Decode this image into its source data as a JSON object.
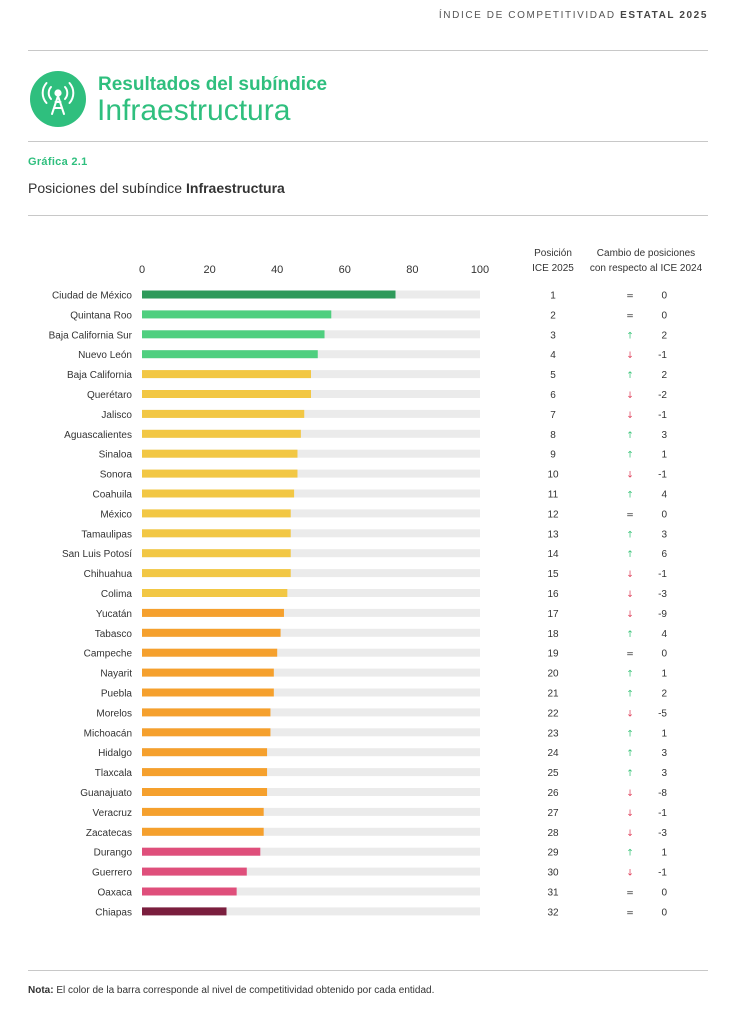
{
  "header": {
    "top_label_prefix": "ÍNDICE DE COMPETITIVIDAD",
    "top_label_bold": "ESTATAL 2025",
    "subtitle": "Resultados del subíndice",
    "title": "Infraestructura",
    "logo_icon": "antenna-tower-icon"
  },
  "figure": {
    "label": "Gráfica 2.1",
    "caption_prefix": "Posiciones del subíndice",
    "caption_bold": "Infraestructura"
  },
  "columns": {
    "position_line1": "Posición",
    "position_line2": "ICE 2025",
    "change_line1": "Cambio de posiciones",
    "change_line2": "con respecto al ICE 2024"
  },
  "note": {
    "label": "Nota:",
    "text": "El color de la barra corresponde al nivel de competitividad obtenido por cada entidad."
  },
  "colors": {
    "accent": "#2fbf7e",
    "track": "#ebebeb",
    "up": "#3cc47a",
    "down": "#e0455f",
    "level_colors": {
      "muy_alta": "#2e9a5a",
      "alta": "#4fcf7f",
      "media_alta": "#f2c744",
      "media_baja": "#f5a02d",
      "baja": "#df4f7b",
      "muy_baja": "#7a1e3e"
    }
  },
  "chart_data": {
    "type": "bar",
    "orientation": "horizontal",
    "title": "Posiciones del subíndice Infraestructura",
    "xlim": [
      0,
      100
    ],
    "xticks": [
      0,
      20,
      40,
      60,
      80,
      100
    ],
    "categories": [
      "Ciudad de México",
      "Quintana Roo",
      "Baja California Sur",
      "Nuevo León",
      "Baja California",
      "Querétaro",
      "Jalisco",
      "Aguascalientes",
      "Sinaloa",
      "Sonora",
      "Coahuila",
      "México",
      "Tamaulipas",
      "San Luis Potosí",
      "Chihuahua",
      "Colima",
      "Yucatán",
      "Tabasco",
      "Campeche",
      "Nayarit",
      "Puebla",
      "Morelos",
      "Michoacán",
      "Hidalgo",
      "Tlaxcala",
      "Guanajuato",
      "Veracruz",
      "Zacatecas",
      "Durango",
      "Guerrero",
      "Oaxaca",
      "Chiapas"
    ],
    "values": [
      75,
      56,
      54,
      52,
      50,
      50,
      48,
      47,
      46,
      46,
      45,
      44,
      44,
      44,
      44,
      43,
      42,
      41,
      40,
      39,
      39,
      38,
      38,
      37,
      37,
      37,
      36,
      36,
      35,
      31,
      28,
      25
    ],
    "levels": [
      "muy_alta",
      "alta",
      "alta",
      "alta",
      "media_alta",
      "media_alta",
      "media_alta",
      "media_alta",
      "media_alta",
      "media_alta",
      "media_alta",
      "media_alta",
      "media_alta",
      "media_alta",
      "media_alta",
      "media_alta",
      "media_baja",
      "media_baja",
      "media_baja",
      "media_baja",
      "media_baja",
      "media_baja",
      "media_baja",
      "media_baja",
      "media_baja",
      "media_baja",
      "media_baja",
      "media_baja",
      "baja",
      "baja",
      "baja",
      "muy_baja"
    ],
    "positions": [
      "1",
      "2",
      "3",
      "4",
      "5",
      "6",
      "7",
      "8",
      "9",
      "10",
      "11",
      "12",
      "13",
      "14",
      "15",
      "16",
      "17",
      "18",
      "19",
      "20",
      "21",
      "22",
      "23",
      "24",
      "25",
      "26",
      "27",
      "28",
      "29",
      "30",
      "31",
      "32"
    ],
    "change_direction": [
      "same",
      "same",
      "up",
      "down",
      "up",
      "down",
      "down",
      "up",
      "up",
      "down",
      "up",
      "same",
      "up",
      "up",
      "down",
      "down",
      "down",
      "up",
      "same",
      "up",
      "up",
      "down",
      "up",
      "up",
      "up",
      "down",
      "down",
      "down",
      "up",
      "down",
      "same",
      "same"
    ],
    "change_values": [
      "0",
      "0",
      "2",
      "-1",
      "2",
      "-2",
      "-1",
      "3",
      "1",
      "-1",
      "4",
      "0",
      "3",
      "6",
      "-1",
      "-3",
      "-9",
      "4",
      "0",
      "1",
      "2",
      "-5",
      "1",
      "3",
      "3",
      "-8",
      "-1",
      "-3",
      "1",
      "-1",
      "0",
      "0"
    ]
  }
}
